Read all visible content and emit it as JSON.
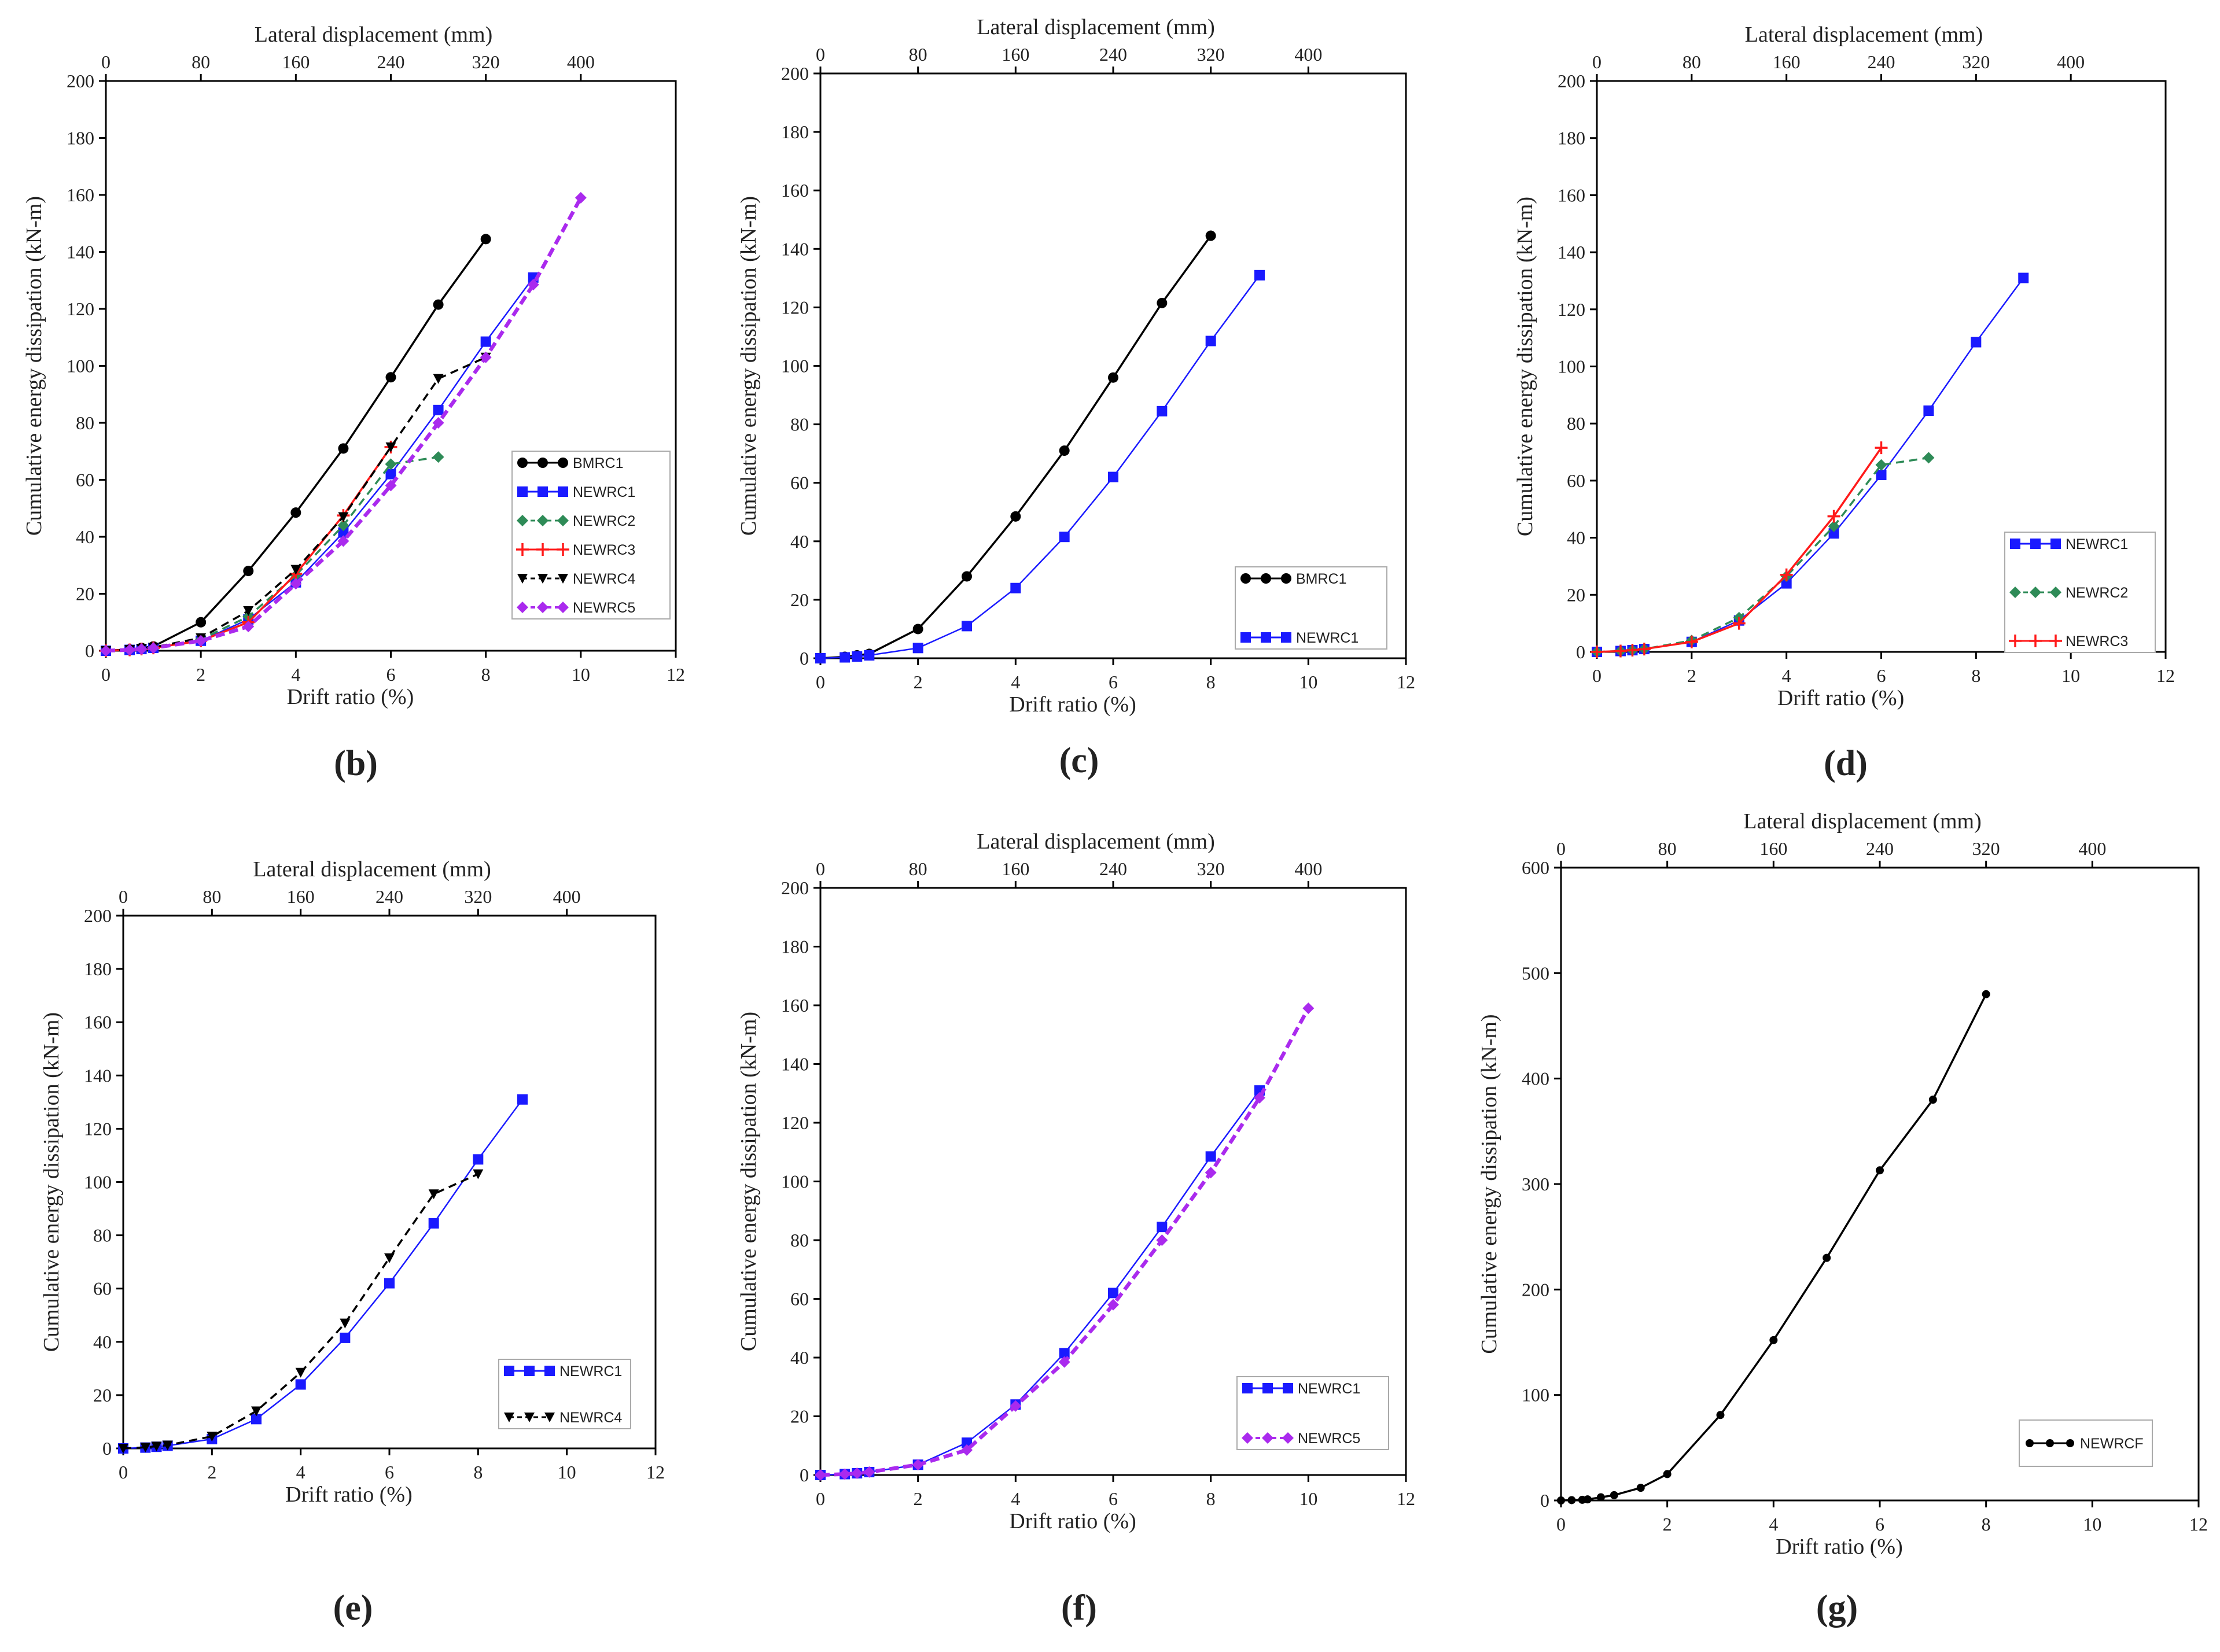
{
  "figure": {
    "axis_labels": {
      "x_bottom": "Drift ratio (%)",
      "x_top": "Lateral displacement (mm)",
      "y": "Cumulative energy dissipation (kN-m)"
    }
  },
  "chart_data": [
    {
      "type": "line",
      "panel": "(b)",
      "xlabel": "Drift ratio (%)",
      "x2label": "Lateral displacement (mm)",
      "ylabel": "Cumulative energy dissipation (kN-m)",
      "xlim": [
        0,
        12
      ],
      "ylim": [
        0,
        200
      ],
      "xticks": [
        0,
        2,
        4,
        6,
        8,
        10,
        12
      ],
      "yticks": [
        0,
        20,
        40,
        60,
        80,
        100,
        120,
        140,
        160,
        180,
        200
      ],
      "x2ticks": [
        0,
        80,
        160,
        240,
        320,
        400
      ],
      "legend_position": "lower-right",
      "series": [
        {
          "name": "BMRC1",
          "color": "#000000",
          "marker": "circle",
          "dash": "solid",
          "x": [
            0,
            0.5,
            0.75,
            1,
            2,
            3,
            4,
            5,
            6,
            7,
            8
          ],
          "values": [
            0,
            0.5,
            1,
            1.5,
            10,
            28,
            48.5,
            71,
            96,
            121.5,
            144.5
          ]
        },
        {
          "name": "NEWRC1",
          "color": "#1a1aff",
          "marker": "square",
          "dash": "thin",
          "x": [
            0,
            0.5,
            0.75,
            1,
            2,
            3,
            4,
            5,
            6,
            7,
            8,
            9
          ],
          "values": [
            0,
            0.3,
            0.6,
            1,
            3.5,
            11,
            24,
            41.5,
            62,
            84.5,
            108.5,
            131
          ]
        },
        {
          "name": "NEWRC2",
          "color": "#2e8b57",
          "marker": "diamond",
          "dash": "dashed",
          "x": [
            0,
            0.5,
            0.75,
            1,
            2,
            3,
            4,
            5,
            6,
            7
          ],
          "values": [
            0,
            0.3,
            0.6,
            1,
            4,
            12,
            26.5,
            44,
            65.5,
            68
          ]
        },
        {
          "name": "NEWRC3",
          "color": "#ff1a1a",
          "marker": "plus",
          "dash": "solid",
          "x": [
            0,
            0.5,
            0.75,
            1,
            2,
            3,
            4,
            5,
            6
          ],
          "values": [
            0,
            0.3,
            0.6,
            1,
            3.5,
            10,
            27,
            47.5,
            71.5
          ]
        },
        {
          "name": "NEWRC4",
          "color": "#000000",
          "marker": "triangle-down",
          "dash": "dashed",
          "x": [
            0,
            0.5,
            0.75,
            1,
            2,
            3,
            4,
            5,
            6,
            7,
            8
          ],
          "values": [
            0,
            0.4,
            0.8,
            1.2,
            4.5,
            14,
            28.5,
            47,
            71.5,
            95.5,
            103
          ]
        },
        {
          "name": "NEWRC5",
          "color": "#aa2aee",
          "marker": "diamond",
          "dash": "heavy-dashed",
          "x": [
            0,
            0.5,
            0.75,
            1,
            2,
            3,
            4,
            5,
            6,
            7,
            8,
            9,
            10
          ],
          "values": [
            0,
            0.3,
            0.6,
            1,
            3.5,
            8.5,
            23.5,
            38.5,
            58,
            80,
            103,
            128.5,
            159
          ]
        }
      ]
    },
    {
      "type": "line",
      "panel": "(c)",
      "xlabel": "Drift ratio (%)",
      "x2label": "Lateral displacement (mm)",
      "ylabel": "Cumulative energy dissipation (kN-m)",
      "xlim": [
        0,
        12
      ],
      "ylim": [
        0,
        200
      ],
      "xticks": [
        0,
        2,
        4,
        6,
        8,
        10,
        12
      ],
      "yticks": [
        0,
        20,
        40,
        60,
        80,
        100,
        120,
        140,
        160,
        180,
        200
      ],
      "x2ticks": [
        0,
        80,
        160,
        240,
        320,
        400
      ],
      "legend_position": "lower-right",
      "series": [
        {
          "name": "BMRC1",
          "color": "#000000",
          "marker": "circle",
          "dash": "solid",
          "x": [
            0,
            0.5,
            0.75,
            1,
            2,
            3,
            4,
            5,
            6,
            7,
            8
          ],
          "values": [
            0,
            0.5,
            1,
            1.5,
            10,
            28,
            48.5,
            71,
            96,
            121.5,
            144.5
          ]
        },
        {
          "name": "NEWRC1",
          "color": "#1a1aff",
          "marker": "square",
          "dash": "thin",
          "x": [
            0,
            0.5,
            0.75,
            1,
            2,
            3,
            4,
            5,
            6,
            7,
            8,
            9
          ],
          "values": [
            0,
            0.3,
            0.6,
            1,
            3.5,
            11,
            24,
            41.5,
            62,
            84.5,
            108.5,
            131
          ]
        }
      ]
    },
    {
      "type": "line",
      "panel": "(d)",
      "xlabel": "Drift ratio (%)",
      "x2label": "Lateral displacement (mm)",
      "ylabel": "Cumulative energy dissipation (kN-m)",
      "xlim": [
        0,
        12
      ],
      "ylim": [
        0,
        200
      ],
      "xticks": [
        0,
        2,
        4,
        6,
        8,
        10,
        12
      ],
      "yticks": [
        0,
        20,
        40,
        60,
        80,
        100,
        120,
        140,
        160,
        180,
        200
      ],
      "x2ticks": [
        0,
        80,
        160,
        240,
        320,
        400
      ],
      "legend_position": "lower-right",
      "series": [
        {
          "name": "NEWRC1",
          "color": "#1a1aff",
          "marker": "square",
          "dash": "thin",
          "x": [
            0,
            0.5,
            0.75,
            1,
            2,
            3,
            4,
            5,
            6,
            7,
            8,
            9
          ],
          "values": [
            0,
            0.3,
            0.6,
            1,
            3.5,
            11,
            24,
            41.5,
            62,
            84.5,
            108.5,
            131
          ]
        },
        {
          "name": "NEWRC2",
          "color": "#2e8b57",
          "marker": "diamond",
          "dash": "dashed",
          "x": [
            0,
            0.5,
            0.75,
            1,
            2,
            3,
            4,
            5,
            6,
            7
          ],
          "values": [
            0,
            0.3,
            0.6,
            1,
            4,
            12,
            26.5,
            44,
            65.5,
            68
          ]
        },
        {
          "name": "NEWRC3",
          "color": "#ff1a1a",
          "marker": "plus",
          "dash": "solid",
          "x": [
            0,
            0.5,
            0.75,
            1,
            2,
            3,
            4,
            5,
            6
          ],
          "values": [
            0,
            0.3,
            0.6,
            1,
            3.5,
            10,
            27,
            47.5,
            71.5
          ]
        }
      ]
    },
    {
      "type": "line",
      "panel": "(e)",
      "xlabel": "Drift ratio (%)",
      "x2label": "Lateral displacement (mm)",
      "ylabel": "Cumulative energy dissipation (kN-m)",
      "xlim": [
        0,
        12
      ],
      "ylim": [
        0,
        200
      ],
      "xticks": [
        0,
        2,
        4,
        6,
        8,
        10,
        12
      ],
      "yticks": [
        0,
        20,
        40,
        60,
        80,
        100,
        120,
        140,
        160,
        180,
        200
      ],
      "x2ticks": [
        0,
        80,
        160,
        240,
        320,
        400
      ],
      "legend_position": "lower-right",
      "series": [
        {
          "name": "NEWRC1",
          "color": "#1a1aff",
          "marker": "square",
          "dash": "thin",
          "x": [
            0,
            0.5,
            0.75,
            1,
            2,
            3,
            4,
            5,
            6,
            7,
            8,
            9
          ],
          "values": [
            0,
            0.3,
            0.6,
            1,
            3.5,
            11,
            24,
            41.5,
            62,
            84.5,
            108.5,
            131
          ]
        },
        {
          "name": "NEWRC4",
          "color": "#000000",
          "marker": "triangle-down",
          "dash": "dashed",
          "x": [
            0,
            0.5,
            0.75,
            1,
            2,
            3,
            4,
            5,
            6,
            7,
            8
          ],
          "values": [
            0,
            0.4,
            0.8,
            1.2,
            4.5,
            14,
            28.5,
            47,
            71.5,
            95.5,
            103
          ]
        }
      ]
    },
    {
      "type": "line",
      "panel": "(f)",
      "xlabel": "Drift ratio (%)",
      "x2label": "Lateral displacement (mm)",
      "ylabel": "Cumulative energy dissipation (kN-m)",
      "xlim": [
        0,
        12
      ],
      "ylim": [
        0,
        200
      ],
      "xticks": [
        0,
        2,
        4,
        6,
        8,
        10,
        12
      ],
      "yticks": [
        0,
        20,
        40,
        60,
        80,
        100,
        120,
        140,
        160,
        180,
        200
      ],
      "x2ticks": [
        0,
        80,
        160,
        240,
        320,
        400
      ],
      "legend_position": "lower-right",
      "series": [
        {
          "name": "NEWRC1",
          "color": "#1a1aff",
          "marker": "square",
          "dash": "thin",
          "x": [
            0,
            0.5,
            0.75,
            1,
            2,
            3,
            4,
            5,
            6,
            7,
            8,
            9
          ],
          "values": [
            0,
            0.3,
            0.6,
            1,
            3.5,
            11,
            24,
            41.5,
            62,
            84.5,
            108.5,
            131
          ]
        },
        {
          "name": "NEWRC5",
          "color": "#aa2aee",
          "marker": "diamond",
          "dash": "heavy-dashed",
          "x": [
            0,
            0.5,
            0.75,
            1,
            2,
            3,
            4,
            5,
            6,
            7,
            8,
            9,
            10
          ],
          "values": [
            0,
            0.3,
            0.6,
            1,
            3.5,
            8.5,
            23.5,
            38.5,
            58,
            80,
            103,
            128.5,
            159
          ]
        }
      ]
    },
    {
      "type": "line",
      "panel": "(g)",
      "xlabel": "Drift ratio (%)",
      "x2label": "Lateral displacement (mm)",
      "ylabel": "Cumulative energy dissipation (kN-m)",
      "xlim": [
        0,
        12
      ],
      "ylim": [
        0,
        600
      ],
      "xticks": [
        0,
        2,
        4,
        6,
        8,
        10,
        12
      ],
      "yticks": [
        0,
        100,
        200,
        300,
        400,
        500,
        600
      ],
      "x2ticks": [
        0,
        80,
        160,
        240,
        320,
        400
      ],
      "legend_position": "lower-right",
      "series": [
        {
          "name": "NEWRCF",
          "color": "#000000",
          "marker": "small-circle",
          "dash": "solid",
          "x": [
            0,
            0.2,
            0.4,
            0.5,
            0.75,
            1,
            1.5,
            2,
            3,
            4,
            5,
            6,
            7,
            8
          ],
          "values": [
            0,
            0.3,
            0.6,
            1,
            3,
            5,
            12,
            25,
            81,
            152,
            230,
            313,
            380,
            480
          ]
        }
      ]
    }
  ]
}
